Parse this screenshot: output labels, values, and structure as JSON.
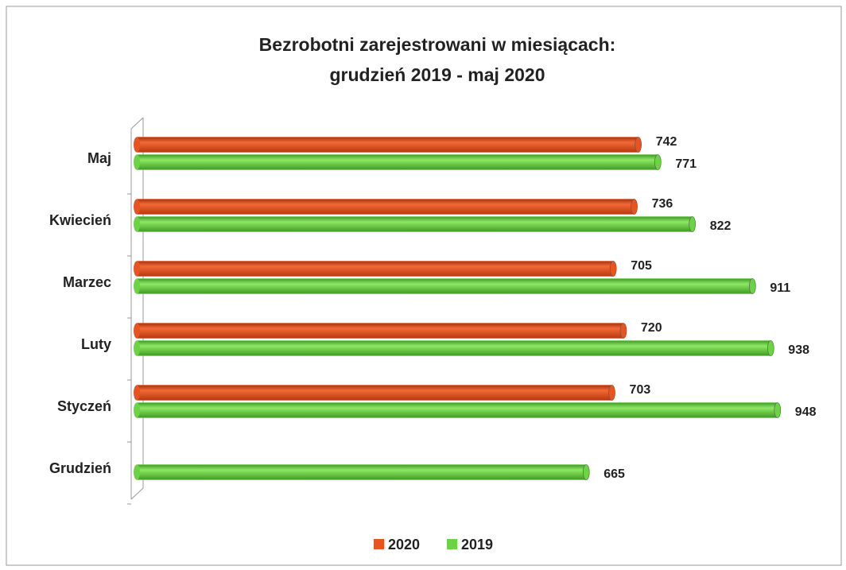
{
  "chart_data": {
    "type": "bar",
    "orientation": "horizontal",
    "title": [
      "Bezrobotni zarejestrowani w miesiącach:",
      "grudzień 2019 - maj 2020"
    ],
    "categories": [
      "Maj",
      "Kwiecień",
      "Marzec",
      "Luty",
      "Styczeń",
      "Grudzień"
    ],
    "series": [
      {
        "name": "2020",
        "color": "#e8541f",
        "values": [
          742,
          736,
          705,
          720,
          703,
          null
        ]
      },
      {
        "name": "2019",
        "color": "#6cd444",
        "values": [
          771,
          822,
          911,
          938,
          948,
          665
        ]
      }
    ],
    "legend": "bottom"
  }
}
